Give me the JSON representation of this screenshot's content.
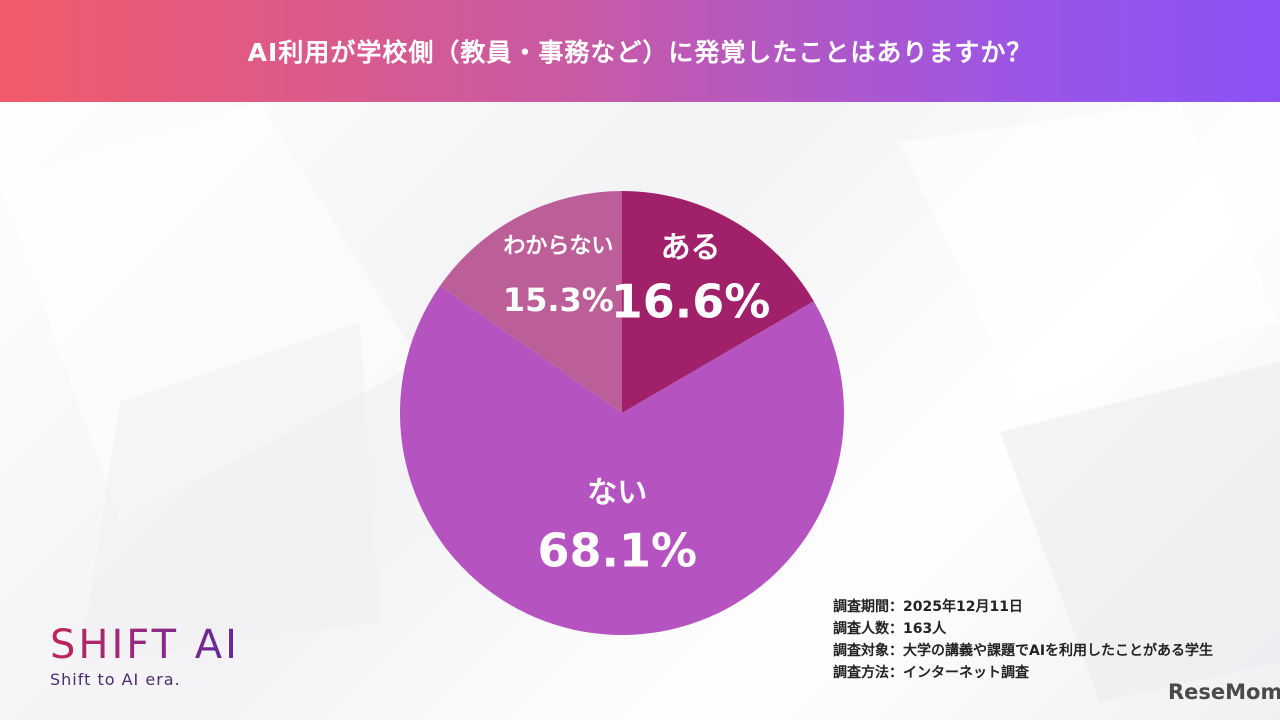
{
  "header": {
    "title": "AI利用が学校側（教員・事務など）に発覚したことはありますか？"
  },
  "chart_data": {
    "type": "pie",
    "title": "AI利用が学校側（教員・事務など）に発覚したことはありますか？",
    "categories": [
      "ある",
      "ない",
      "わからない"
    ],
    "values": [
      16.6,
      68.1,
      15.3
    ],
    "value_labels": [
      "16.6%",
      "68.1%",
      "15.3%"
    ],
    "colors": [
      "#a0206a",
      "#b553c0",
      "#bc5f98"
    ],
    "start_angle_deg": 0,
    "direction": "clockwise"
  },
  "notes": {
    "period": "調査期間：2025年12月11日",
    "count": "調査人数：163人",
    "target": "調査対象：大学の講義や課題でAIを利用したことがある学生",
    "method": "調査方法：インターネット調査"
  },
  "logo": {
    "brand": "SHIFT AI",
    "tagline": "Shift to AI era."
  },
  "watermark": "ReseMom"
}
